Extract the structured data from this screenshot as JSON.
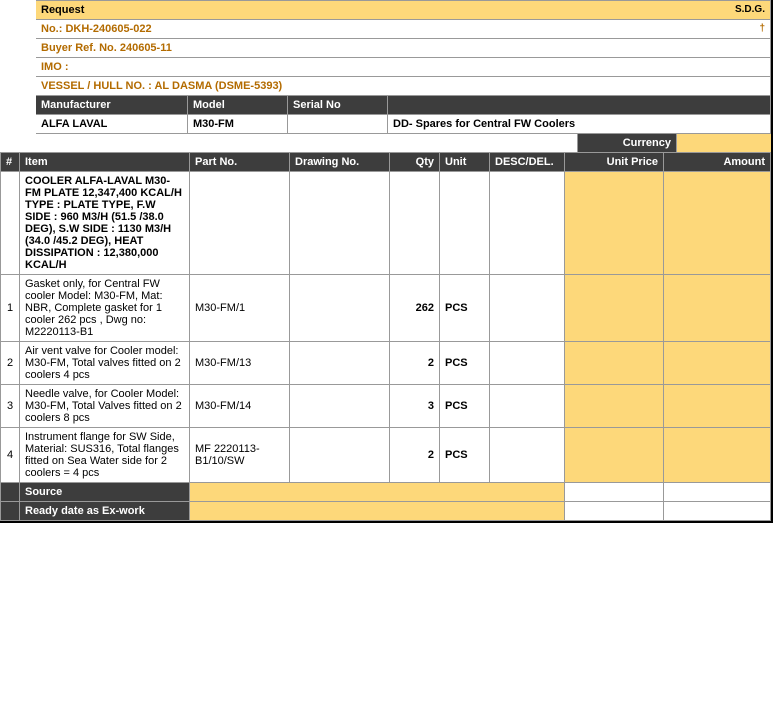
{
  "top": {
    "request_label": "Request",
    "sdg": "S.D.G.",
    "no_label": "No.:  DKH-240605-022",
    "dagger": "†",
    "buyer_ref": "Buyer Ref. No. 240605-11",
    "imo": "IMO :",
    "vessel": "VESSEL / HULL NO. : AL DASMA (DSME-5393)"
  },
  "headers1": {
    "mfr": "Manufacturer",
    "model": "Model",
    "serial": "Serial No"
  },
  "values1": {
    "mfr": "ALFA LAVAL",
    "model": "M30-FM",
    "desc": "DD- Spares for Central FW Coolers"
  },
  "currency_label": "Currency",
  "table_headers": {
    "num": "#",
    "item": "Item",
    "part": "Part No.",
    "dwg": "Drawing No.",
    "qty": "Qty",
    "unit": "Unit",
    "desc": "DESC/DEL.",
    "price": "Unit Price",
    "amount": "Amount"
  },
  "spec_row": "COOLER ALFA-LAVAL M30-FM PLATE 12,347,400 KCAL/H TYPE : PLATE TYPE, F.W SIDE : 960 M3/H (51.5 /38.0 DEG), S.W SIDE : 1130 M3/H (34.0 /45.2 DEG), HEAT DISSIPATION : 12,380,000 KCAL/H",
  "rows": [
    {
      "num": "1",
      "item": "Gasket only, for Central FW cooler Model: M30-FM, Mat: NBR, Complete gasket for 1 cooler 262 pcs , Dwg no: M2220113-B1",
      "part": "M30-FM/1",
      "qty": "262",
      "unit": "PCS"
    },
    {
      "num": "2",
      "item": "Air vent valve for Cooler model: M30-FM, Total valves fitted on 2 coolers 4 pcs",
      "part": "M30-FM/13",
      "qty": "2",
      "unit": "PCS"
    },
    {
      "num": "3",
      "item": "Needle valve, for Cooler Model: M30-FM, Total Valves fitted on 2 coolers 8 pcs",
      "part": "M30-FM/14",
      "qty": "3",
      "unit": "PCS"
    },
    {
      "num": "4",
      "item": "Instrument flange for SW Side, Material: SUS316, Total flanges fitted on Sea Water side for 2 coolers = 4 pcs",
      "part": "MF 2220113-B1/10/SW",
      "qty": "2",
      "unit": "PCS"
    }
  ],
  "footer": {
    "source": "Source",
    "ready": "Ready date as Ex-work"
  }
}
